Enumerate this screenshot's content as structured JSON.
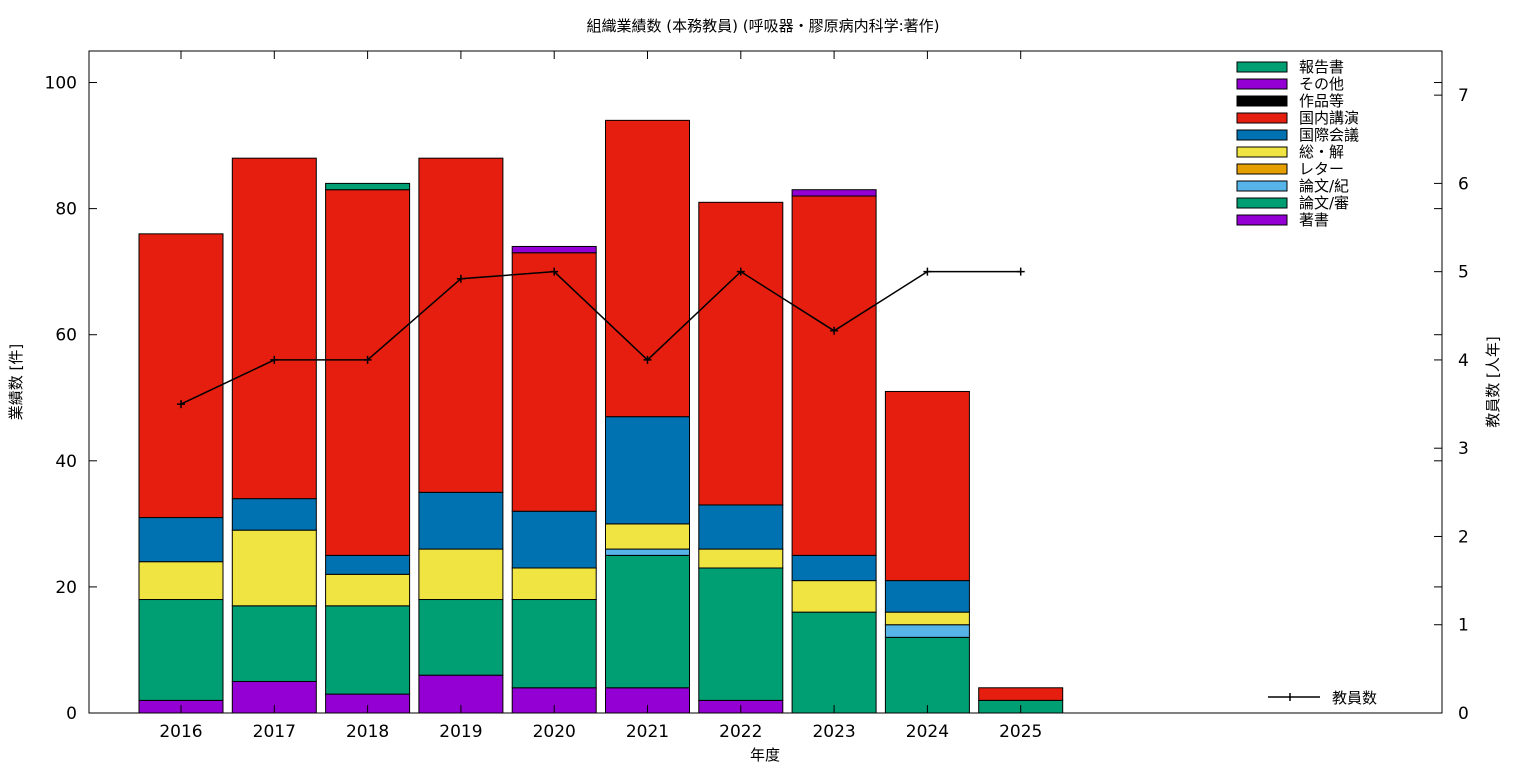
{
  "chart_data": {
    "type": "bar",
    "stacked": true,
    "title": "組織業績数 (本務教員) (呼吸器・膠原病内科学:著作)",
    "xlabel": "年度",
    "ylabel": "業績数 [件]",
    "y2label": "教員数 [人年]",
    "ylim": [
      0,
      105
    ],
    "y2lim": [
      0,
      7.5
    ],
    "yticks": [
      0,
      20,
      40,
      60,
      80,
      100
    ],
    "y2ticks": [
      0,
      1,
      2,
      3,
      4,
      5,
      6,
      7
    ],
    "grid": false,
    "legend_position": "top-right",
    "categories": [
      "2016",
      "2017",
      "2018",
      "2019",
      "2020",
      "2021",
      "2022",
      "2023",
      "2024",
      "2025"
    ],
    "series": [
      {
        "name": "著書",
        "color": "#9400d3",
        "values": [
          2,
          5,
          3,
          6,
          4,
          4,
          2,
          0,
          0,
          0
        ]
      },
      {
        "name": "論文/審",
        "color": "#009e73",
        "values": [
          16,
          12,
          14,
          12,
          14,
          21,
          21,
          16,
          12,
          2
        ]
      },
      {
        "name": "論文/紀",
        "color": "#56b4e9",
        "values": [
          0,
          0,
          0,
          0,
          0,
          1,
          0,
          0,
          2,
          0
        ]
      },
      {
        "name": "レター",
        "color": "#e69f00",
        "values": [
          0,
          0,
          0,
          0,
          0,
          0,
          0,
          0,
          0,
          0
        ]
      },
      {
        "name": "総・解",
        "color": "#f0e442",
        "values": [
          6,
          12,
          5,
          8,
          5,
          4,
          3,
          5,
          2,
          0
        ]
      },
      {
        "name": "国際会議",
        "color": "#0072b2",
        "values": [
          7,
          5,
          3,
          9,
          9,
          17,
          7,
          4,
          5,
          0
        ]
      },
      {
        "name": "国内講演",
        "color": "#e51e10",
        "values": [
          45,
          54,
          58,
          53,
          41,
          47,
          48,
          57,
          30,
          2
        ]
      },
      {
        "name": "作品等",
        "color": "#000000",
        "values": [
          0,
          0,
          0,
          0,
          0,
          0,
          0,
          0,
          0,
          0
        ]
      },
      {
        "name": "その他",
        "color": "#9400d3",
        "values": [
          0,
          0,
          0,
          0,
          1,
          0,
          0,
          1,
          0,
          0
        ]
      },
      {
        "name": "報告書",
        "color": "#009e73",
        "values": [
          0,
          0,
          1,
          0,
          0,
          0,
          0,
          0,
          0,
          0
        ]
      }
    ],
    "line_series": {
      "name": "教員数",
      "axis": "y2",
      "color": "#000000",
      "values": [
        3.5,
        4.0,
        4.0,
        4.92,
        5.0,
        4.0,
        5.0,
        4.33,
        5.0,
        5.0
      ]
    }
  }
}
